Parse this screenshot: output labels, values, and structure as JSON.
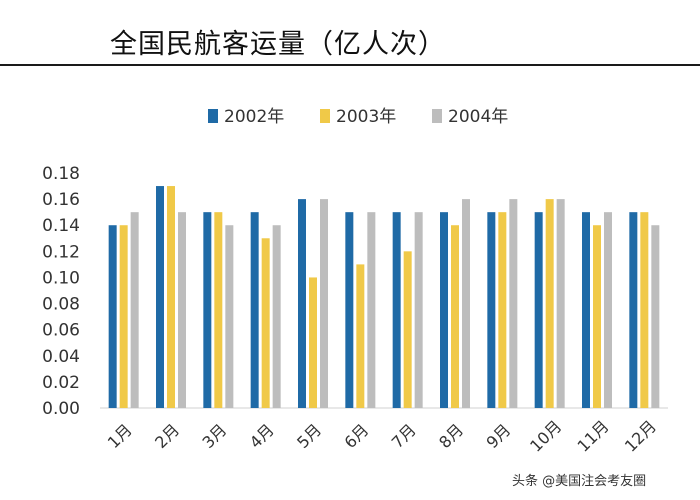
{
  "title": "全国民航客运量（亿人次）",
  "watermark": "头条 @美国注会考友圈",
  "chart_data": {
    "type": "bar",
    "title": "全国民航客运量（亿人次）",
    "categories": [
      "1月",
      "2月",
      "3月",
      "4月",
      "5月",
      "6月",
      "7月",
      "8月",
      "9月",
      "10月",
      "11月",
      "12月"
    ],
    "series": [
      {
        "name": "2002年",
        "color": "#1f6aa6",
        "values": [
          0.14,
          0.17,
          0.15,
          0.15,
          0.16,
          0.15,
          0.15,
          0.15,
          0.15,
          0.15,
          0.15,
          0.15
        ]
      },
      {
        "name": "2003年",
        "color": "#f0c948",
        "values": [
          0.14,
          0.17,
          0.15,
          0.13,
          0.1,
          0.11,
          0.12,
          0.14,
          0.15,
          0.16,
          0.14,
          0.15
        ]
      },
      {
        "name": "2004年",
        "color": "#bdbdbd",
        "values": [
          0.15,
          0.15,
          0.14,
          0.14,
          0.16,
          0.15,
          0.15,
          0.16,
          0.16,
          0.16,
          0.15,
          0.14
        ]
      }
    ],
    "ylim": [
      0,
      0.18
    ],
    "yticks": [
      "0.00",
      "0.02",
      "0.04",
      "0.06",
      "0.08",
      "0.10",
      "0.12",
      "0.14",
      "0.16",
      "0.18"
    ],
    "legend_position": "top-center",
    "grid": false
  }
}
